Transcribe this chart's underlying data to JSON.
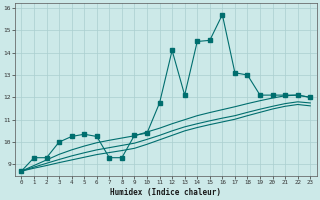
{
  "title": "",
  "xlabel": "Humidex (Indice chaleur)",
  "ylabel": "",
  "bg_color": "#cce9e8",
  "line_color": "#006e6e",
  "xlim": [
    -0.5,
    23.5
  ],
  "ylim": [
    8.5,
    16.2
  ],
  "yticks": [
    9,
    10,
    11,
    12,
    13,
    14,
    15,
    16
  ],
  "xticks": [
    0,
    1,
    2,
    3,
    4,
    5,
    6,
    7,
    8,
    9,
    10,
    11,
    12,
    13,
    14,
    15,
    16,
    17,
    18,
    19,
    20,
    21,
    22,
    23
  ],
  "series": [
    {
      "x": [
        0,
        1,
        2,
        3,
        4,
        5,
        6,
        7,
        8,
        9,
        10,
        11,
        12,
        13,
        14,
        15,
        16,
        17,
        18,
        19,
        20,
        21,
        22,
        23
      ],
      "y": [
        8.7,
        9.3,
        9.3,
        10.0,
        10.25,
        10.35,
        10.25,
        9.3,
        9.3,
        10.3,
        10.4,
        11.75,
        14.1,
        12.1,
        14.5,
        14.55,
        15.7,
        13.1,
        13.0,
        12.1,
        12.1,
        12.1,
        12.1,
        12.0
      ],
      "marker": true,
      "smooth": false
    },
    {
      "x": [
        0,
        1,
        2,
        3,
        4,
        5,
        6,
        7,
        8,
        9,
        10,
        11,
        12,
        13,
        14,
        15,
        16,
        17,
        18,
        19,
        20,
        21,
        22,
        23
      ],
      "y": [
        8.7,
        8.95,
        9.2,
        9.45,
        9.65,
        9.82,
        9.97,
        10.08,
        10.18,
        10.28,
        10.45,
        10.62,
        10.82,
        11.0,
        11.18,
        11.32,
        11.45,
        11.58,
        11.72,
        11.85,
        11.97,
        12.07,
        12.1,
        12.0
      ],
      "marker": false,
      "smooth": true
    },
    {
      "x": [
        0,
        1,
        2,
        3,
        4,
        5,
        6,
        7,
        8,
        9,
        10,
        11,
        12,
        13,
        14,
        15,
        16,
        17,
        18,
        19,
        20,
        21,
        22,
        23
      ],
      "y": [
        8.7,
        8.88,
        9.05,
        9.22,
        9.38,
        9.52,
        9.65,
        9.75,
        9.85,
        9.95,
        10.12,
        10.3,
        10.5,
        10.68,
        10.82,
        10.95,
        11.07,
        11.18,
        11.33,
        11.47,
        11.6,
        11.72,
        11.8,
        11.75
      ],
      "marker": false,
      "smooth": true
    },
    {
      "x": [
        0,
        1,
        2,
        3,
        4,
        5,
        6,
        7,
        8,
        9,
        10,
        11,
        12,
        13,
        14,
        15,
        16,
        17,
        18,
        19,
        20,
        21,
        22,
        23
      ],
      "y": [
        8.7,
        8.83,
        8.95,
        9.08,
        9.2,
        9.32,
        9.44,
        9.53,
        9.62,
        9.72,
        9.9,
        10.1,
        10.3,
        10.5,
        10.65,
        10.78,
        10.9,
        11.02,
        11.18,
        11.33,
        11.48,
        11.6,
        11.68,
        11.62
      ],
      "marker": false,
      "smooth": true
    }
  ]
}
